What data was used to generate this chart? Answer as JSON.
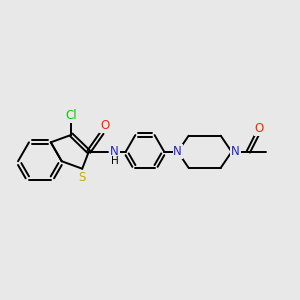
{
  "background_color": "#e8e8e8",
  "bond_color": "#000000",
  "lw": 1.4,
  "figsize": [
    3.0,
    3.0
  ],
  "dpi": 100,
  "colors": {
    "Cl": "#00cc00",
    "S": "#ccaa00",
    "O": "#ff2200",
    "N": "#2222cc",
    "C": "#000000"
  }
}
